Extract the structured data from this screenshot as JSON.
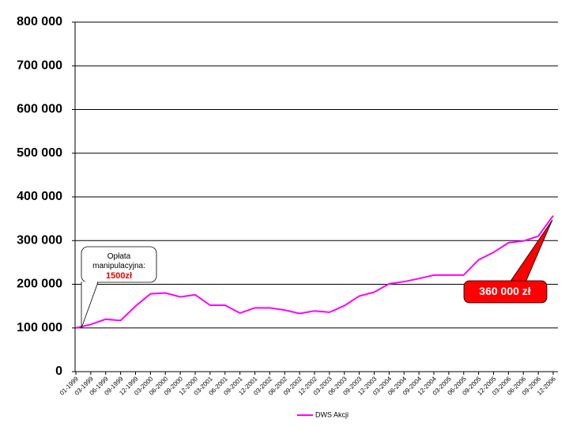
{
  "chart_data": {
    "type": "line",
    "categories": [
      "01-1999",
      "03-1999",
      "06-1999",
      "09-1999",
      "12-1999",
      "03-2000",
      "06-2000",
      "09-2000",
      "12-2000",
      "03-2001",
      "06-2001",
      "09-2001",
      "12-2001",
      "03-2002",
      "06-2002",
      "09-2002",
      "12-2002",
      "03-2003",
      "06-2003",
      "09-2003",
      "12-2003",
      "03-2004",
      "06-2004",
      "09-2004",
      "12-2004",
      "03-2005",
      "06-2005",
      "09-2005",
      "12-2005",
      "03-2006",
      "06-2006",
      "09-2006",
      "12-2006"
    ],
    "series": [
      {
        "name": "DWS Akcji",
        "color": "#ff00ff",
        "values": [
          100000,
          108000,
          120000,
          117000,
          150000,
          178000,
          180000,
          171000,
          176000,
          152000,
          152000,
          134000,
          146000,
          146000,
          141000,
          133000,
          139000,
          136000,
          151000,
          173000,
          182000,
          201000,
          206000,
          213000,
          221000,
          221000,
          221000,
          256000,
          273000,
          295000,
          299000,
          310000,
          357000
        ]
      }
    ],
    "ylim": [
      0,
      800000
    ],
    "yticks": [
      0,
      {
        "value": 100000,
        "label": "100 000"
      },
      {
        "value": 200000,
        "label": "200 000"
      },
      {
        "value": 300000,
        "label": "300 000"
      },
      {
        "value": 400000,
        "label": "400 000"
      },
      {
        "value": 500000,
        "label": "500 000"
      },
      {
        "value": 600000,
        "label": "600 000"
      },
      {
        "value": 700000,
        "label": "700 000"
      },
      {
        "value": 800000,
        "label": "800 000"
      }
    ],
    "grid": true,
    "legend": "bottom",
    "annotations": {
      "fee_label": "Opłata manipulacyjna:",
      "fee_value": "1500zł",
      "final_value": "360 000 zł"
    }
  }
}
